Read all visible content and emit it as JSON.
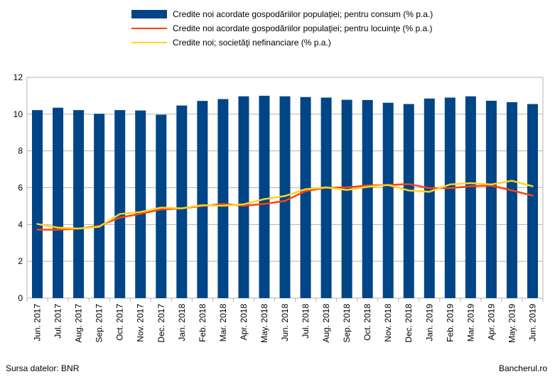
{
  "chart_data": {
    "type": "bar",
    "categories": [
      "Jun. 2017",
      "Jul. 2017",
      "Aug. 2017",
      "Sep. 2017",
      "Oct. 2017",
      "Nov. 2017",
      "Dec. 2017",
      "Jan. 2018",
      "Feb. 2018",
      "Mar. 2018",
      "Apr. 2018",
      "May. 2018",
      "Jun. 2018",
      "Jul. 2018",
      "Aug. 2018",
      "Sep. 2018",
      "Oct. 2018",
      "Nov. 2018",
      "Dec. 2018",
      "Jan. 2019",
      "Feb. 2019",
      "Mar. 2019",
      "Apr. 2019",
      "May. 2019",
      "Jun. 2019"
    ],
    "ylim": [
      0,
      12
    ],
    "yticks": [
      "0",
      "2",
      "4",
      "6",
      "8",
      "10",
      "12"
    ],
    "grid": true,
    "legend_position": "top",
    "series": [
      {
        "name": "Credite noi acordate gospodăriilor populaţiei; pentru consum (% p.a.)",
        "type": "bar",
        "color": "#004586",
        "values": [
          10.22,
          10.35,
          10.22,
          10.02,
          10.22,
          10.2,
          9.97,
          10.47,
          10.72,
          10.82,
          10.97,
          11.0,
          10.97,
          10.93,
          10.9,
          10.78,
          10.77,
          10.62,
          10.55,
          10.85,
          10.9,
          10.97,
          10.73,
          10.65,
          10.55
        ]
      },
      {
        "name": "Credite noi acordate gospodăriilor populaţiei; pentru locuinţe (% p.a.)",
        "type": "line",
        "color": "#ff420e",
        "values": [
          3.72,
          3.72,
          3.77,
          3.93,
          4.38,
          4.58,
          4.82,
          4.88,
          5.0,
          5.12,
          5.02,
          5.12,
          5.28,
          5.82,
          6.0,
          6.02,
          6.12,
          6.15,
          6.2,
          5.98,
          5.98,
          6.08,
          6.12,
          5.85,
          5.57
        ]
      },
      {
        "name": "Credite noi; societăţi nefinanciare (% p.a.)",
        "type": "line",
        "color": "#ffd320",
        "values": [
          4.03,
          3.83,
          3.78,
          3.88,
          4.57,
          4.68,
          4.92,
          4.88,
          5.05,
          5.02,
          5.1,
          5.38,
          5.55,
          5.92,
          6.02,
          5.88,
          6.05,
          6.15,
          5.85,
          5.78,
          6.18,
          6.25,
          6.18,
          6.38,
          6.08
        ]
      }
    ]
  },
  "footer": {
    "source": "Sursa datelor: BNR",
    "brand": "Bancherul.ro"
  }
}
